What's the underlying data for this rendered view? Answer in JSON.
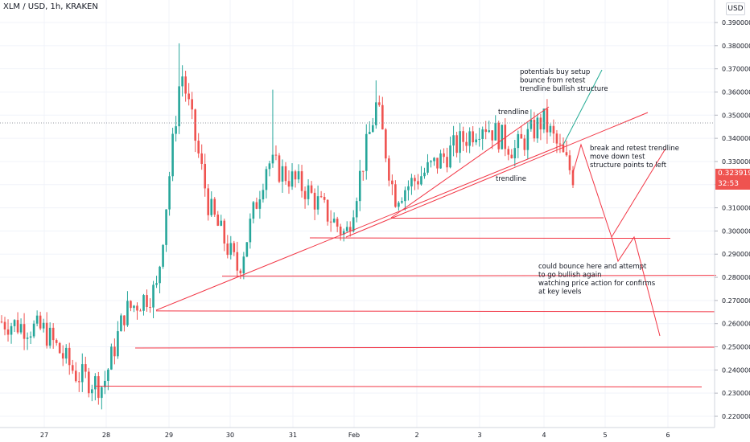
{
  "header": {
    "title": "XLM / USD, 1h, KRAKEN",
    "currency_button": "USD"
  },
  "price_tag": {
    "price": "0.323919",
    "timer": "32:53",
    "axis_peek": "0.3"
  },
  "colors": {
    "up": "#26a69a",
    "down": "#ef5350",
    "drawing": "#f23645",
    "tealline": "#22ab94",
    "grid": "#f0f3fa",
    "axis_text": "#131722"
  },
  "chart_data": {
    "type": "candlestick",
    "symbol": "XLM / USD",
    "interval": "1h",
    "exchange": "KRAKEN",
    "ylim": [
      0.215,
      0.395
    ],
    "y_ticks": [
      "0.390000",
      "0.380000",
      "0.370000",
      "0.360000",
      "0.350000",
      "0.340000",
      "0.330000",
      "0.320000",
      "0.310000",
      "0.300000",
      "0.290000",
      "0.280000",
      "0.270000",
      "0.260000",
      "0.250000",
      "0.240000",
      "0.230000",
      "0.220000"
    ],
    "x_ticks": [
      "27",
      "28",
      "29",
      "30",
      "31",
      "Feb",
      "2",
      "3",
      "4",
      "5",
      "6"
    ],
    "last_price": 0.323919,
    "horizontal_levels": [
      0.3055,
      0.297,
      0.2805,
      0.2655,
      0.2495,
      0.233
    ],
    "annotations": [
      "potentials buy setup\nbounce from retest\ntrendline bullish structure",
      "trendline",
      "trendline",
      "break and retest trendline\nmove down test\nstructure points to left",
      "could bounce here and attempt\nto go bullish again\nwatching price action for confirms\nat key levels"
    ],
    "candles_close_path": [
      {
        "x": "26 Jan",
        "v": 0.261
      },
      {
        "x": "27 Jan",
        "v": 0.257
      },
      {
        "x": "27 Jan",
        "v": 0.238
      },
      {
        "x": "28 Jan",
        "v": 0.233
      },
      {
        "x": "28 Jan",
        "v": 0.265
      },
      {
        "x": "29 Jan",
        "v": 0.275
      },
      {
        "x": "29 Jan",
        "v": 0.37
      },
      {
        "x": "29 Jan",
        "v": 0.31
      },
      {
        "x": "30 Jan",
        "v": 0.283
      },
      {
        "x": "31 Jan",
        "v": 0.33
      },
      {
        "x": "31 Jan",
        "v": 0.318
      },
      {
        "x": "1 Feb",
        "v": 0.298
      },
      {
        "x": "1 Feb",
        "v": 0.355
      },
      {
        "x": "1 Feb",
        "v": 0.315
      },
      {
        "x": "2 Feb",
        "v": 0.33
      },
      {
        "x": "3 Feb",
        "v": 0.347
      },
      {
        "x": "3 Feb",
        "v": 0.335
      },
      {
        "x": "4 Feb",
        "v": 0.348
      },
      {
        "x": "4 Feb",
        "v": 0.324
      }
    ]
  }
}
